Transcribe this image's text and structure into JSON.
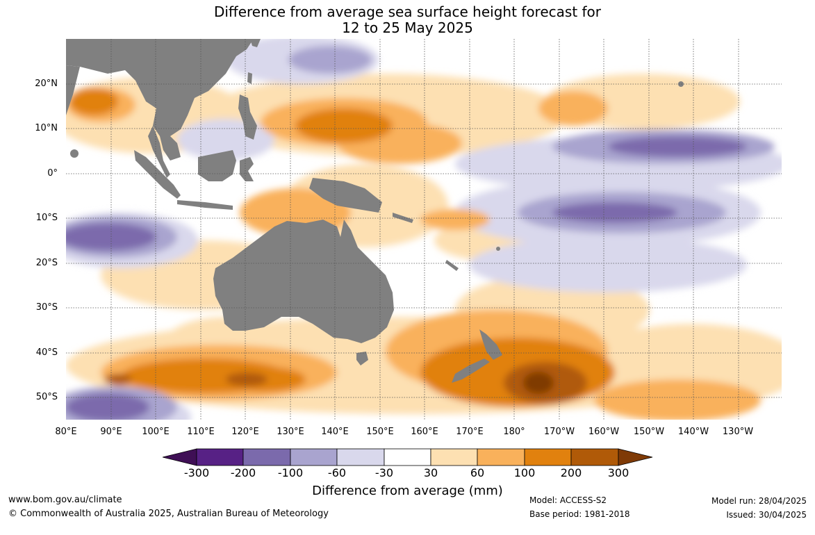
{
  "title": {
    "line1": "Difference from average sea surface height forecast for",
    "line2": "12 to 25 May 2025"
  },
  "map": {
    "lat_labels": [
      "20°N",
      "10°N",
      "0°",
      "10°S",
      "20°S",
      "30°S",
      "40°S",
      "50°S"
    ],
    "lon_labels": [
      "80°E",
      "90°E",
      "100°E",
      "110°E",
      "120°E",
      "130°E",
      "140°E",
      "150°E",
      "160°E",
      "170°E",
      "180°",
      "170°W",
      "160°W",
      "150°W",
      "140°W",
      "130°W"
    ],
    "land_color": "#808080",
    "grid_color": "#555555"
  },
  "colorbar": {
    "label": "Difference from average (mm)",
    "ticks": [
      "-300",
      "-200",
      "-100",
      "-60",
      "-30",
      "30",
      "60",
      "100",
      "200",
      "300"
    ],
    "colors": [
      "#3f0f55",
      "#572185",
      "#7b6aac",
      "#a9a4cf",
      "#d9d8ec",
      "#ffffff",
      "#fde0b2",
      "#f9b15b",
      "#e1810e",
      "#b05a08",
      "#7f3a06"
    ]
  },
  "footer": {
    "website": "www.bom.gov.au/climate",
    "copyright": "© Commonwealth of Australia 2025, Australian Bureau of Meteorology",
    "model": "Model: ACCESS-S2",
    "base_period": "Base period: 1981-2018",
    "model_run": "Model run: 28/04/2025",
    "issued": "Issued: 30/04/2025"
  }
}
